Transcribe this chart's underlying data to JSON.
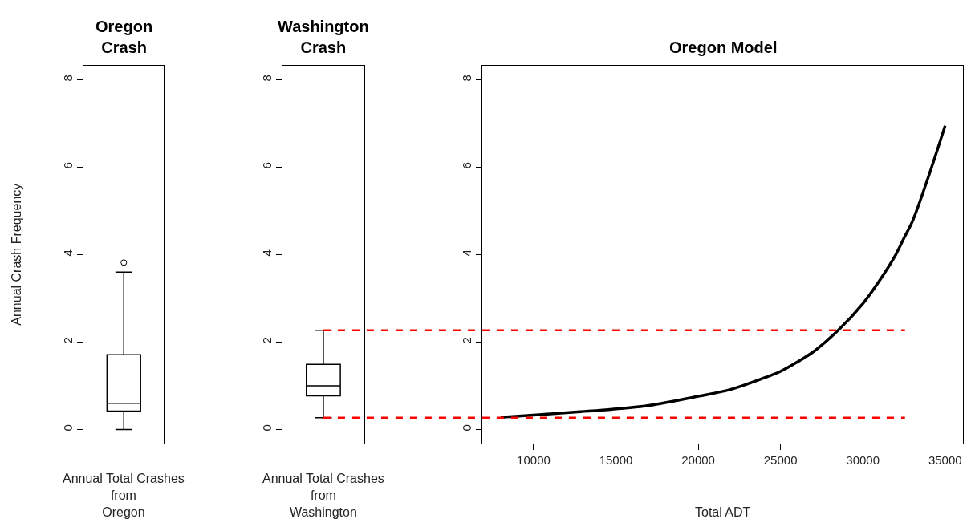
{
  "chart_data": [
    {
      "type": "box",
      "title": "Oregon\nCrash",
      "xlabel": "Annual Total Crashes\nfrom\nOregon",
      "ylabel": "Annual Crash Frequency",
      "categories": [
        null
      ],
      "tick_labels": "y",
      "ylim": [
        -0.32,
        8.32
      ],
      "yticks": [
        0,
        2,
        4,
        6,
        8
      ],
      "boxes": [
        {
          "low": 0,
          "q1": 0.42,
          "median": 0.6,
          "q3": 1.71,
          "high": 3.6,
          "outliers": [
            3.82
          ]
        }
      ]
    },
    {
      "type": "box",
      "title": "Washington\nCrash",
      "xlabel": "Annual Total Crashes\nfrom\nWashington",
      "categories": [
        null
      ],
      "tick_labels": "y",
      "ylim": [
        -0.32,
        8.32
      ],
      "yticks": [
        0,
        2,
        4,
        6,
        8
      ],
      "boxes": [
        {
          "low": 0.27,
          "q1": 0.77,
          "median": 1.0,
          "q3": 1.49,
          "high": 2.27
        }
      ]
    },
    {
      "type": "line",
      "title": "Oregon Model",
      "xlabel": "Total ADT",
      "xlim": [
        6900,
        36100
      ],
      "xticks": [
        10000,
        15000,
        20000,
        25000,
        30000,
        35000
      ],
      "ylim": [
        -0.32,
        8.32
      ],
      "yticks": [
        0,
        2,
        4,
        6,
        8
      ],
      "marker": "none",
      "line_style": "solid",
      "series": [
        {
          "color": "#000000",
          "x": [
            8000,
            10000,
            12500,
            15000,
            17000,
            20000,
            22000,
            24000,
            25000,
            26000,
            27000,
            28500,
            30000,
            31000,
            32000,
            32500,
            33000,
            34000,
            35000
          ],
          "values": [
            0.28,
            0.33,
            0.4,
            0.47,
            0.55,
            0.76,
            0.92,
            1.18,
            1.33,
            1.54,
            1.78,
            2.27,
            2.88,
            3.4,
            4.0,
            4.38,
            4.75,
            5.8,
            6.95
          ]
        }
      ],
      "ref_lines": [
        {
          "axis": "y",
          "value": 2.27,
          "color": "#ff0000",
          "line_style": "dashed"
        },
        {
          "axis": "y",
          "value": 0.27,
          "color": "#ff0000",
          "line_style": "dashed"
        }
      ]
    }
  ]
}
